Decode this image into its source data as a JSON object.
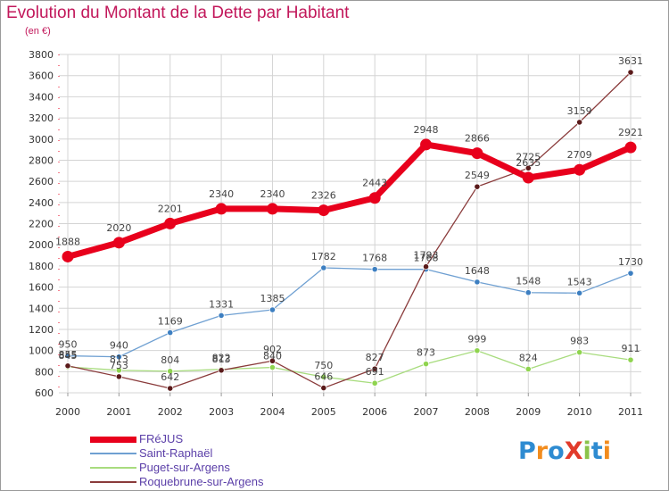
{
  "chart_data": {
    "type": "line",
    "title": "Evolution du Montant de la Dette par Habitant",
    "subtitle": "(en €)",
    "xlabel": "",
    "ylabel": "",
    "ylim": [
      600,
      3800
    ],
    "yticks": [
      600,
      800,
      1000,
      1200,
      1400,
      1600,
      1800,
      2000,
      2200,
      2400,
      2600,
      2800,
      3000,
      3200,
      3400,
      3600,
      3800
    ],
    "categories": [
      "2000",
      "2001",
      "2002",
      "2003",
      "2004",
      "2005",
      "2006",
      "2007",
      "2008",
      "2009",
      "2010",
      "2011"
    ],
    "grid": true,
    "legend_position": "bottom-left",
    "series": [
      {
        "name": "FRéJUS",
        "color": "#e8001c",
        "marker_color": "#e8001c",
        "values": [
          1888,
          2020,
          2201,
          2340,
          2340,
          2326,
          2443,
          2948,
          2866,
          2635,
          2709,
          2921
        ]
      },
      {
        "name": "Saint-Raphaël",
        "color": "#6fa0d2",
        "marker_color": "#3d7fc1",
        "values": [
          950,
          940,
          1169,
          1331,
          1385,
          1782,
          1768,
          1768,
          1648,
          1548,
          1543,
          1730
        ]
      },
      {
        "name": "Puget-sur-Argens",
        "color": "#a8dc7e",
        "marker_color": "#8fd44f",
        "values": [
          845,
          813,
          804,
          822,
          840,
          750,
          691,
          873,
          999,
          824,
          983,
          911
        ]
      },
      {
        "name": "Roquebrune-sur-Argens",
        "color": "#8a3b3b",
        "marker_color": "#5a1a1a",
        "values": [
          855,
          753,
          642,
          813,
          902,
          646,
          827,
          1793,
          2549,
          2725,
          3159,
          3631
        ]
      }
    ]
  },
  "legend": {
    "items": [
      {
        "label": "FRéJUS",
        "color": "#e8001c"
      },
      {
        "label": "Saint-Raphaël",
        "color": "#6fa0d2"
      },
      {
        "label": "Puget-sur-Argens",
        "color": "#a8dc7e"
      },
      {
        "label": "Roquebrune-sur-Argens",
        "color": "#8a3b3b"
      }
    ]
  },
  "logo": {
    "text": "ProXiti",
    "letter_colors": [
      "#2e8bd1",
      "#f28c1e",
      "#2e8bd1",
      "#e23b2b",
      "#8bc34a",
      "#2e8bd1",
      "#f28c1e"
    ]
  }
}
